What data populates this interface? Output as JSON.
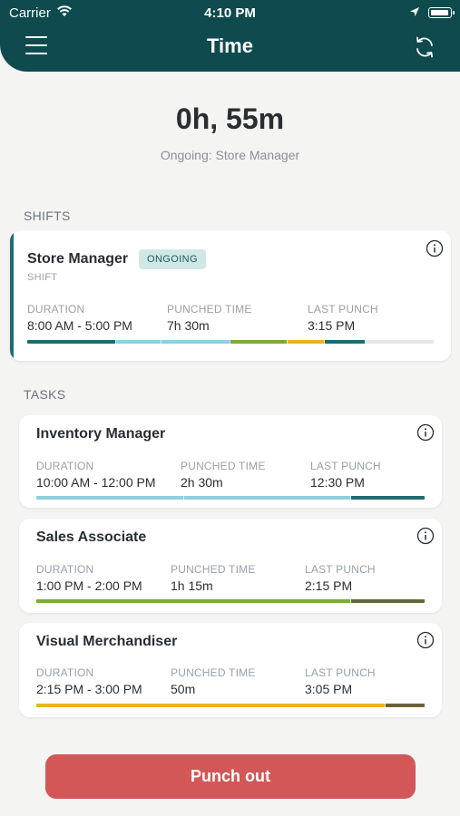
{
  "status_bar": {
    "carrier": "Carrier",
    "time": "4:10 PM"
  },
  "header": {
    "title": "Time"
  },
  "summary": {
    "total": "0h, 55m",
    "ongoing_text": "Ongoing: Store Manager"
  },
  "shifts": {
    "label": "SHIFTS",
    "items": [
      {
        "title": "Store Manager",
        "badge": "ONGOING",
        "type": "SHIFT",
        "duration_label": "DURATION",
        "duration": "8:00 AM - 5:00 PM",
        "punched_label": "PUNCHED TIME",
        "punched": "7h 30m",
        "last_label": "LAST PUNCH",
        "last": "3:15 PM",
        "bar": [
          {
            "color": "#1f6c70",
            "fraction": 0.22
          },
          {
            "color": "#8ecfe0",
            "fraction": 0.11
          },
          {
            "color": "#8ecfe0",
            "fraction": 0.17
          },
          {
            "color": "#7aab3a",
            "fraction": 0.14
          },
          {
            "color": "#e8b61c",
            "fraction": 0.09
          },
          {
            "color": "#1f6c70",
            "fraction": 0.1
          },
          {
            "color": "#e6e6e6",
            "fraction": 0.17
          }
        ]
      }
    ]
  },
  "tasks": {
    "label": "TASKS",
    "items": [
      {
        "title": "Inventory Manager",
        "duration_label": "DURATION",
        "duration": "10:00 AM - 12:00 PM",
        "punched_label": "PUNCHED TIME",
        "punched": "2h 30m",
        "last_label": "LAST PUNCH",
        "last": "12:30 PM",
        "bar": [
          {
            "color": "#8ecfe0",
            "fraction": 0.38
          },
          {
            "color": "#8ecfe0",
            "fraction": 0.43
          },
          {
            "color": "#1f6c70",
            "fraction": 0.19
          }
        ]
      },
      {
        "title": "Sales Associate",
        "duration_label": "DURATION",
        "duration": "1:00 PM - 2:00 PM",
        "punched_label": "PUNCHED TIME",
        "punched": "1h 15m",
        "last_label": "LAST PUNCH",
        "last": "2:15 PM",
        "bar": [
          {
            "color": "#7aab3a",
            "fraction": 0.81
          },
          {
            "color": "#5e6a36",
            "fraction": 0.19
          }
        ]
      },
      {
        "title": "Visual Merchandiser",
        "duration_label": "DURATION",
        "duration": "2:15 PM - 3:00 PM",
        "punched_label": "PUNCHED TIME",
        "punched": "50m",
        "last_label": "LAST PUNCH",
        "last": "3:05 PM",
        "bar": [
          {
            "color": "#e8b61c",
            "fraction": 0.9
          },
          {
            "color": "#6b6236",
            "fraction": 0.1
          }
        ]
      }
    ]
  },
  "punch_button": {
    "label": "Punch out"
  },
  "colors": {
    "header": "#0e4a4e",
    "accent": "#1f6c70",
    "badge_bg": "#cfe8e6",
    "punch_out": "#d35757"
  }
}
